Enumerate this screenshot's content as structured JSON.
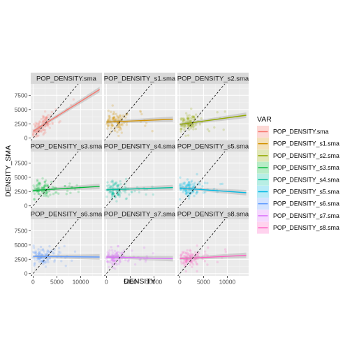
{
  "chart_data": {
    "type": "scatter",
    "facet_layout": "3x3 grid",
    "xlabel": "DENSITY",
    "ylabel": "DENSITY_SMA",
    "xlim": [
      -500,
      14500
    ],
    "ylim": [
      -400,
      9500
    ],
    "x_ticks": [
      0,
      5000,
      10000
    ],
    "y_ticks": [
      0,
      2500,
      5000,
      7500
    ],
    "grid": true,
    "reference_line": "y = x (dashed)",
    "legend": {
      "title": "VAR",
      "placement": "right",
      "entries": [
        "POP_DENSITY.sma",
        "POP_DENSITY_s1.sma",
        "POP_DENSITY_s2.sma",
        "POP_DENSITY_s3.sma",
        "POP_DENSITY_s4.sma",
        "POP_DENSITY_s5.sma",
        "POP_DENSITY_s6.sma",
        "POP_DENSITY_s7.sma",
        "POP_DENSITY_s8.sma"
      ]
    },
    "panels": [
      {
        "name": "POP_DENSITY.sma",
        "color": "#F8766D",
        "fit": [
          [
            0,
            1200
          ],
          [
            14000,
            8500
          ]
        ]
      },
      {
        "name": "POP_DENSITY_s1.sma",
        "color": "#D39200",
        "fit": [
          [
            0,
            2800
          ],
          [
            14000,
            3300
          ]
        ]
      },
      {
        "name": "POP_DENSITY_s2.sma",
        "color": "#93AA00",
        "fit": [
          [
            0,
            2400
          ],
          [
            14000,
            4000
          ]
        ]
      },
      {
        "name": "POP_DENSITY_s3.sma",
        "color": "#00BA38",
        "fit": [
          [
            0,
            2700
          ],
          [
            14000,
            3400
          ]
        ]
      },
      {
        "name": "POP_DENSITY_s4.sma",
        "color": "#00C19F",
        "fit": [
          [
            0,
            2800
          ],
          [
            14000,
            3200
          ]
        ]
      },
      {
        "name": "POP_DENSITY_s5.sma",
        "color": "#00B9E3",
        "fit": [
          [
            0,
            3100
          ],
          [
            14000,
            2300
          ]
        ]
      },
      {
        "name": "POP_DENSITY_s6.sma",
        "color": "#619CFF",
        "fit": [
          [
            0,
            3000
          ],
          [
            14000,
            2900
          ]
        ]
      },
      {
        "name": "POP_DENSITY_s7.sma",
        "color": "#DB72FB",
        "fit": [
          [
            0,
            2900
          ],
          [
            14000,
            2600
          ]
        ]
      },
      {
        "name": "POP_DENSITY_s8.sma",
        "color": "#FF61C3",
        "fit": [
          [
            0,
            2600
          ],
          [
            14000,
            3200
          ]
        ]
      }
    ]
  }
}
